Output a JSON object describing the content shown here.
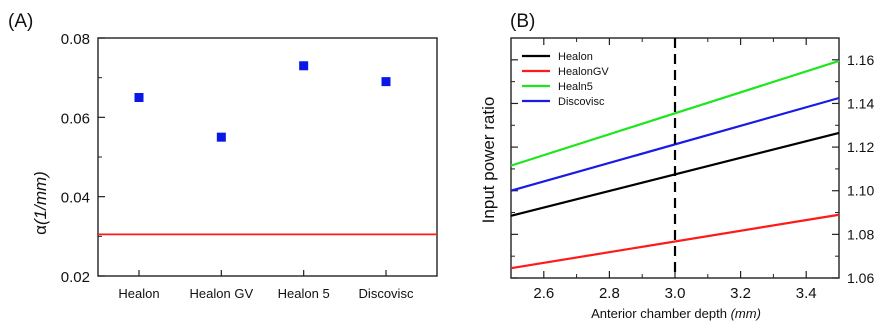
{
  "chart_data": [
    {
      "panel_label": "(A)",
      "type": "scatter",
      "title": "",
      "xlabel": "",
      "ylabel_greek": "α",
      "ylabel_unit": "(1/mm)",
      "categories": [
        "Healon",
        "Healon GV",
        "Healon 5",
        "Discovisc"
      ],
      "values": [
        0.065,
        0.055,
        0.073,
        0.069
      ],
      "ylim": [
        0.02,
        0.08
      ],
      "yticks": [
        "0.02",
        "0.04",
        "0.06",
        "0.08"
      ],
      "reference_line": {
        "y": 0.0305,
        "color": "#ff1a1a"
      },
      "marker": {
        "shape": "square",
        "color": "#0a17e6"
      },
      "grid": false
    },
    {
      "panel_label": "(B)",
      "type": "line",
      "title": "",
      "xlabel_text": "Anterior chamber depth",
      "xlabel_unit": "(mm)",
      "ylabel": "Input power ratio",
      "xlim": [
        2.5,
        3.5
      ],
      "ylim": [
        1.06,
        1.17
      ],
      "xticks": [
        "2.6",
        "2.8",
        "3.0",
        "3.2",
        "3.4"
      ],
      "yticks_right": [
        "1.06",
        "1.08",
        "1.10",
        "1.12",
        "1.14",
        "1.16"
      ],
      "series": [
        {
          "name": "Healon",
          "color": "#000000",
          "x": [
            2.5,
            3.5
          ],
          "y": [
            1.0885,
            1.1265
          ]
        },
        {
          "name": "HealonGV",
          "color": "#ff1a1a",
          "x": [
            2.5,
            3.5
          ],
          "y": [
            1.0645,
            1.089
          ]
        },
        {
          "name": "Healn5",
          "color": "#1ee61e",
          "x": [
            2.5,
            3.5
          ],
          "y": [
            1.1115,
            1.1595
          ]
        },
        {
          "name": "Discovisc",
          "color": "#1a1ae6",
          "x": [
            2.5,
            3.5
          ],
          "y": [
            1.1,
            1.1425
          ]
        }
      ],
      "vertical_marker": {
        "x": 3.0,
        "style": "dashed",
        "color": "#000000"
      },
      "legend_position": "top-left",
      "grid": false
    }
  ]
}
